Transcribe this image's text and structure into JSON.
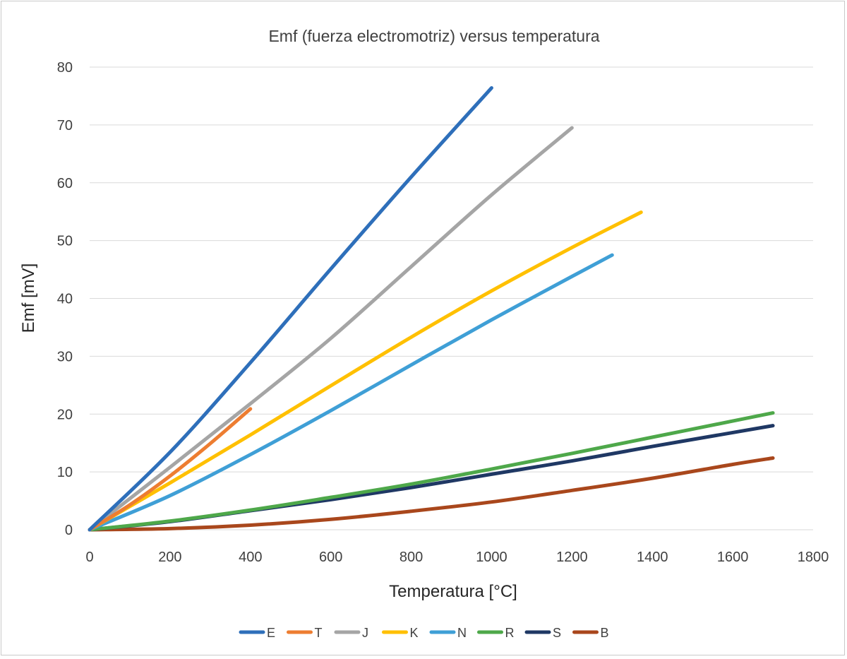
{
  "chart_data": {
    "type": "line",
    "title": "Emf (fuerza electromotriz) versus temperatura",
    "xlabel": "Temperatura [°C]",
    "ylabel": "Emf [mV]",
    "xlim": [
      0,
      1800
    ],
    "ylim": [
      0,
      80
    ],
    "xticks": [
      0,
      200,
      400,
      600,
      800,
      1000,
      1200,
      1400,
      1600,
      1800
    ],
    "yticks": [
      0,
      10,
      20,
      30,
      40,
      50,
      60,
      70,
      80
    ],
    "grid": "horizontal",
    "legend": "bottom",
    "series": [
      {
        "name": "E",
        "color": "#2e6fba",
        "x": [
          0,
          200,
          400,
          600,
          800,
          1000
        ],
        "y": [
          0,
          13.4,
          28.9,
          45.1,
          61.0,
          76.4
        ]
      },
      {
        "name": "T",
        "color": "#ed7d31",
        "x": [
          0,
          100,
          200,
          300,
          400
        ],
        "y": [
          0,
          4.3,
          9.3,
          14.9,
          20.9
        ]
      },
      {
        "name": "J",
        "color": "#a5a5a5",
        "x": [
          0,
          200,
          400,
          600,
          800,
          1000,
          1200
        ],
        "y": [
          0,
          10.8,
          21.8,
          33.1,
          45.5,
          57.9,
          69.5
        ]
      },
      {
        "name": "K",
        "color": "#ffc000",
        "x": [
          0,
          200,
          400,
          600,
          800,
          1000,
          1200,
          1372
        ],
        "y": [
          0,
          8.1,
          16.4,
          24.9,
          33.3,
          41.3,
          48.8,
          54.9
        ]
      },
      {
        "name": "N",
        "color": "#3f9fd6",
        "x": [
          0,
          200,
          400,
          600,
          800,
          1000,
          1200,
          1300
        ],
        "y": [
          0,
          5.9,
          13.0,
          20.6,
          28.5,
          36.3,
          43.8,
          47.5
        ]
      },
      {
        "name": "R",
        "color": "#4ea84a",
        "x": [
          0,
          200,
          400,
          600,
          800,
          1000,
          1200,
          1400,
          1600,
          1700
        ],
        "y": [
          0,
          1.5,
          3.4,
          5.6,
          7.9,
          10.5,
          13.2,
          16.0,
          18.8,
          20.2
        ]
      },
      {
        "name": "S",
        "color": "#1f3864",
        "x": [
          0,
          200,
          400,
          600,
          800,
          1000,
          1200,
          1400,
          1600,
          1700
        ],
        "y": [
          0,
          1.4,
          3.3,
          5.2,
          7.3,
          9.6,
          11.9,
          14.4,
          16.8,
          18.0
        ]
      },
      {
        "name": "B",
        "color": "#a9471c",
        "x": [
          0,
          200,
          400,
          600,
          800,
          1000,
          1200,
          1400,
          1600,
          1700
        ],
        "y": [
          0,
          0.2,
          0.8,
          1.8,
          3.2,
          4.8,
          6.8,
          8.9,
          11.3,
          12.4
        ]
      }
    ]
  }
}
